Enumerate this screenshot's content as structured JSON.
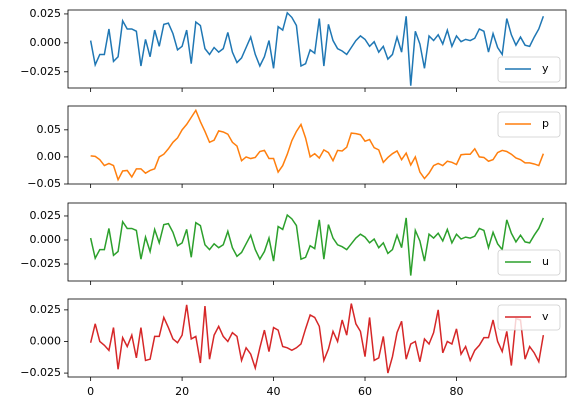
{
  "chart_data": [
    {
      "type": "line",
      "x": [
        0,
        1,
        2,
        3,
        4,
        5,
        6,
        7,
        8,
        9,
        10,
        11,
        12,
        13,
        14,
        15,
        16,
        17,
        18,
        19,
        20,
        21,
        22,
        23,
        24,
        25,
        26,
        27,
        28,
        29,
        30,
        31,
        32,
        33,
        34,
        35,
        36,
        37,
        38,
        39,
        40,
        41,
        42,
        43,
        44,
        45,
        46,
        47,
        48,
        49,
        50,
        51,
        52,
        53,
        54,
        55,
        56,
        57,
        58,
        59,
        60,
        61,
        62,
        63,
        64,
        65,
        66,
        67,
        68,
        69,
        70,
        71,
        72,
        73,
        74,
        75,
        76,
        77,
        78,
        79,
        80,
        81,
        82,
        83,
        84,
        85,
        86,
        87,
        88,
        89,
        90,
        91,
        92,
        93,
        94,
        95,
        96,
        97,
        98,
        99
      ],
      "series": [
        {
          "name": "y",
          "color": "#1f77b4",
          "values": [
            0.002,
            -0.019,
            -0.01,
            -0.01,
            0.012,
            -0.016,
            -0.012,
            0.019,
            0.012,
            0.012,
            0.01,
            -0.02,
            0.003,
            -0.012,
            0.011,
            -0.003,
            0.016,
            0.017,
            0.008,
            -0.006,
            -0.003,
            0.011,
            -0.018,
            0.018,
            0.015,
            -0.005,
            -0.01,
            -0.004,
            -0.008,
            -0.005,
            0.009,
            -0.008,
            -0.017,
            -0.013,
            -0.004,
            0.005,
            -0.01,
            -0.02,
            -0.012,
            0.002,
            -0.022,
            0.014,
            0.011,
            0.026,
            0.022,
            0.015,
            -0.02,
            -0.018,
            -0.006,
            -0.009,
            0.021,
            -0.02,
            0.016,
            0.002,
            -0.005,
            -0.007,
            -0.01,
            -0.004,
            0.002,
            0.006,
            0.003,
            -0.003,
            0.001,
            -0.008,
            -0.003,
            -0.014,
            -0.01,
            0.005,
            -0.008,
            0.023,
            -0.037,
            0.01,
            -0.001,
            -0.022,
            0.006,
            0.002,
            0.007,
            -0.001,
            0.011,
            -0.003,
            0.006,
            0.001,
            0.003,
            0.002,
            0.004,
            0.012,
            0.01,
            -0.008,
            0.008,
            -0.004,
            -0.01,
            0.021,
            0.007,
            -0.002,
            0.005,
            -0.002,
            -0.003,
            0.005,
            0.012,
            0.023
          ]
        }
      ],
      "xlim": [
        -4.95,
        103.95
      ],
      "xticks": [
        0,
        20,
        40,
        60,
        80
      ],
      "ylim": [
        -0.039,
        0.0284
      ],
      "yticks": [
        {
          "value": -0.025,
          "label": "−0.025"
        },
        {
          "value": 0,
          "label": "0.000"
        },
        {
          "value": 0.025,
          "label": "0.025"
        }
      ],
      "legend": "lower right"
    },
    {
      "type": "line",
      "x": [
        0,
        1,
        2,
        3,
        4,
        5,
        6,
        7,
        8,
        9,
        10,
        11,
        12,
        13,
        14,
        15,
        16,
        17,
        18,
        19,
        20,
        21,
        22,
        23,
        24,
        25,
        26,
        27,
        28,
        29,
        30,
        31,
        32,
        33,
        34,
        35,
        36,
        37,
        38,
        39,
        40,
        41,
        42,
        43,
        44,
        45,
        46,
        47,
        48,
        49,
        50,
        51,
        52,
        53,
        54,
        55,
        56,
        57,
        58,
        59,
        60,
        61,
        62,
        63,
        64,
        65,
        66,
        67,
        68,
        69,
        70,
        71,
        72,
        73,
        74,
        75,
        76,
        77,
        78,
        79,
        80,
        81,
        82,
        83,
        84,
        85,
        86,
        87,
        88,
        89,
        90,
        91,
        92,
        93,
        94,
        95,
        96,
        97,
        98,
        99
      ],
      "series": [
        {
          "name": "p",
          "color": "#ff7f0e",
          "values": [
            0.002,
            0.001,
            -0.005,
            -0.016,
            -0.012,
            -0.016,
            -0.042,
            -0.026,
            -0.025,
            -0.037,
            -0.022,
            -0.022,
            -0.03,
            -0.025,
            -0.022,
            0.0,
            0.005,
            0.015,
            0.027,
            0.035,
            0.05,
            0.06,
            0.073,
            0.086,
            0.065,
            0.047,
            0.027,
            0.031,
            0.048,
            0.046,
            0.042,
            0.027,
            0.02,
            -0.007,
            0.0,
            -0.003,
            -0.001,
            0.01,
            0.012,
            -0.003,
            -0.003,
            -0.028,
            -0.016,
            0.005,
            0.03,
            0.047,
            0.06,
            0.035,
            0.0,
            0.006,
            -0.002,
            0.013,
            0.008,
            -0.007,
            0.012,
            0.011,
            0.018,
            0.044,
            0.043,
            0.041,
            0.029,
            0.032,
            0.017,
            0.013,
            -0.01,
            -0.001,
            0.006,
            0.011,
            -0.005,
            0.007,
            -0.015,
            0.0,
            -0.028,
            -0.04,
            -0.03,
            -0.016,
            -0.012,
            -0.016,
            -0.008,
            -0.01,
            -0.014,
            0.004,
            0.005,
            0.005,
            0.015,
            0.0,
            -0.001,
            -0.008,
            -0.005,
            0.008,
            0.012,
            0.01,
            0.005,
            -0.002,
            -0.005,
            -0.011,
            -0.011,
            -0.013,
            -0.016,
            0.006
          ]
        }
      ],
      "xlim": [
        -4.95,
        103.95
      ],
      "xticks": [
        0,
        20,
        40,
        60,
        80
      ],
      "ylim": [
        -0.05,
        0.094
      ],
      "yticks": [
        {
          "value": -0.05,
          "label": "−0.05"
        },
        {
          "value": 0,
          "label": "0.00"
        },
        {
          "value": 0.05,
          "label": "0.05"
        }
      ],
      "legend": "upper right"
    },
    {
      "type": "line",
      "x": [
        0,
        1,
        2,
        3,
        4,
        5,
        6,
        7,
        8,
        9,
        10,
        11,
        12,
        13,
        14,
        15,
        16,
        17,
        18,
        19,
        20,
        21,
        22,
        23,
        24,
        25,
        26,
        27,
        28,
        29,
        30,
        31,
        32,
        33,
        34,
        35,
        36,
        37,
        38,
        39,
        40,
        41,
        42,
        43,
        44,
        45,
        46,
        47,
        48,
        49,
        50,
        51,
        52,
        53,
        54,
        55,
        56,
        57,
        58,
        59,
        60,
        61,
        62,
        63,
        64,
        65,
        66,
        67,
        68,
        69,
        70,
        71,
        72,
        73,
        74,
        75,
        76,
        77,
        78,
        79,
        80,
        81,
        82,
        83,
        84,
        85,
        86,
        87,
        88,
        89,
        90,
        91,
        92,
        93,
        94,
        95,
        96,
        97,
        98,
        99
      ],
      "series": [
        {
          "name": "u",
          "color": "#2ca02c",
          "values": [
            0.002,
            -0.019,
            -0.01,
            -0.01,
            0.012,
            -0.016,
            -0.012,
            0.019,
            0.012,
            0.012,
            0.01,
            -0.02,
            0.003,
            -0.012,
            0.011,
            -0.003,
            0.016,
            0.017,
            0.008,
            -0.006,
            -0.003,
            0.011,
            -0.018,
            0.018,
            0.015,
            -0.005,
            -0.01,
            -0.004,
            -0.008,
            -0.005,
            0.009,
            -0.008,
            -0.017,
            -0.013,
            -0.004,
            0.005,
            -0.01,
            -0.02,
            -0.012,
            0.002,
            -0.022,
            0.014,
            0.011,
            0.026,
            0.022,
            0.015,
            -0.02,
            -0.018,
            -0.006,
            -0.009,
            0.021,
            -0.02,
            0.016,
            0.002,
            -0.005,
            -0.007,
            -0.01,
            -0.004,
            0.002,
            0.006,
            0.003,
            -0.003,
            0.001,
            -0.008,
            -0.003,
            -0.014,
            -0.01,
            0.005,
            -0.008,
            0.023,
            -0.037,
            0.01,
            -0.001,
            -0.022,
            0.006,
            0.002,
            0.007,
            -0.001,
            0.011,
            -0.003,
            0.006,
            0.001,
            0.003,
            0.002,
            0.004,
            0.012,
            0.01,
            -0.008,
            0.008,
            -0.004,
            -0.01,
            0.021,
            0.007,
            -0.002,
            0.005,
            -0.002,
            -0.003,
            0.005,
            0.012,
            0.023
          ]
        }
      ],
      "xlim": [
        -4.95,
        103.95
      ],
      "xticks": [
        0,
        20,
        40,
        60,
        80
      ],
      "ylim": [
        -0.0427,
        0.0385
      ],
      "yticks": [
        {
          "value": -0.025,
          "label": "−0.025"
        },
        {
          "value": 0,
          "label": "0.000"
        },
        {
          "value": 0.025,
          "label": "0.025"
        }
      ],
      "legend": "lower right"
    },
    {
      "type": "line",
      "x": [
        0,
        1,
        2,
        3,
        4,
        5,
        6,
        7,
        8,
        9,
        10,
        11,
        12,
        13,
        14,
        15,
        16,
        17,
        18,
        19,
        20,
        21,
        22,
        23,
        24,
        25,
        26,
        27,
        28,
        29,
        30,
        31,
        32,
        33,
        34,
        35,
        36,
        37,
        38,
        39,
        40,
        41,
        42,
        43,
        44,
        45,
        46,
        47,
        48,
        49,
        50,
        51,
        52,
        53,
        54,
        55,
        56,
        57,
        58,
        59,
        60,
        61,
        62,
        63,
        64,
        65,
        66,
        67,
        68,
        69,
        70,
        71,
        72,
        73,
        74,
        75,
        76,
        77,
        78,
        79,
        80,
        81,
        82,
        83,
        84,
        85,
        86,
        87,
        88,
        89,
        90,
        91,
        92,
        93,
        94,
        95,
        96,
        97,
        98,
        99
      ],
      "series": [
        {
          "name": "v",
          "color": "#d62728",
          "values": [
            -0.001,
            0.014,
            0.0,
            -0.003,
            -0.007,
            0.011,
            -0.022,
            0.003,
            -0.004,
            0.005,
            -0.013,
            0.011,
            -0.015,
            -0.014,
            0.004,
            0.004,
            0.019,
            0.011,
            0.002,
            -0.001,
            0.005,
            0.029,
            0.002,
            0.004,
            -0.017,
            0.028,
            -0.014,
            0.005,
            0.012,
            0.004,
            0.0,
            0.007,
            0.004,
            -0.015,
            -0.005,
            -0.01,
            -0.021,
            -0.005,
            0.009,
            -0.008,
            0.011,
            0.009,
            -0.004,
            -0.005,
            -0.007,
            -0.005,
            -0.002,
            0.01,
            0.021,
            0.019,
            0.012,
            -0.015,
            -0.006,
            0.008,
            0.0,
            0.017,
            0.005,
            0.03,
            0.014,
            0.008,
            -0.012,
            0.019,
            -0.015,
            -0.013,
            0.004,
            -0.025,
            -0.012,
            0.007,
            0.016,
            -0.014,
            -0.002,
            0.0,
            -0.016,
            0.002,
            -0.002,
            0.007,
            0.025,
            -0.009,
            0.0,
            -0.002,
            0.01,
            -0.01,
            -0.004,
            -0.015,
            -0.007,
            -0.003,
            0.003,
            0.003,
            0.017,
            0.0,
            -0.008,
            0.008,
            -0.019,
            0.018,
            0.017,
            -0.014,
            -0.004,
            -0.009,
            -0.016,
            0.005
          ]
        }
      ],
      "xlim": [
        -4.95,
        103.95
      ],
      "xticks": [
        0,
        20,
        40,
        60,
        80
      ],
      "ylim": [
        -0.0281,
        0.0336
      ],
      "yticks": [
        {
          "value": -0.025,
          "label": "−0.025"
        },
        {
          "value": 0,
          "label": "0.000"
        },
        {
          "value": 0.025,
          "label": "0.025"
        }
      ],
      "legend": "upper right"
    }
  ]
}
